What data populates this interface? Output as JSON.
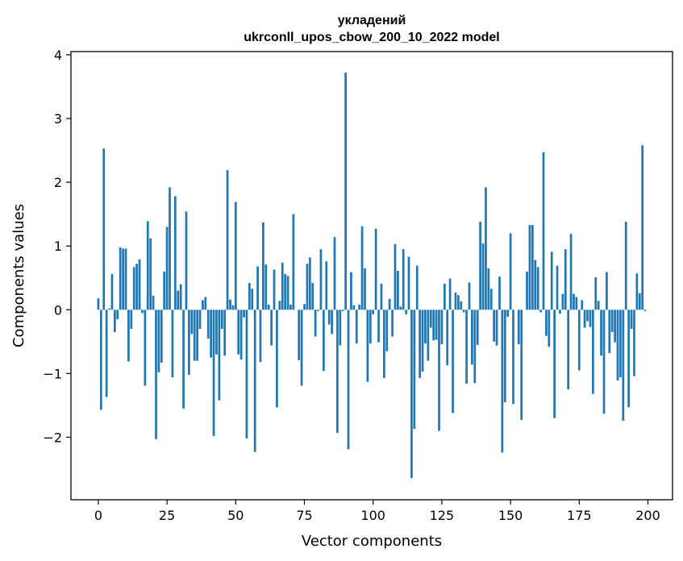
{
  "chart_data": {
    "type": "bar",
    "title": [
      "укладений",
      "ukrconll_upos_cbow_200_10_2022 model"
    ],
    "xlabel": "Vector components",
    "ylabel": "Components values",
    "xlim": [
      -9.95,
      208.95
    ],
    "ylim": [
      -2.98,
      4.05
    ],
    "xticks": [
      0,
      25,
      50,
      75,
      100,
      125,
      150,
      175,
      200
    ],
    "xtick_labels": [
      "0",
      "25",
      "50",
      "75",
      "100",
      "125",
      "150",
      "175",
      "200"
    ],
    "yticks": [
      -2,
      -1,
      0,
      1,
      2,
      3,
      4
    ],
    "ytick_labels": [
      "−2",
      "−1",
      "0",
      "1",
      "2",
      "3",
      "4"
    ],
    "grid": false,
    "bar_color": "#1f77b4",
    "x": [
      0,
      1,
      2,
      3,
      4,
      5,
      6,
      7,
      8,
      9,
      10,
      11,
      12,
      13,
      14,
      15,
      16,
      17,
      18,
      19,
      20,
      21,
      22,
      23,
      24,
      25,
      26,
      27,
      28,
      29,
      30,
      31,
      32,
      33,
      34,
      35,
      36,
      37,
      38,
      39,
      40,
      41,
      42,
      43,
      44,
      45,
      46,
      47,
      48,
      49,
      50,
      51,
      52,
      53,
      54,
      55,
      56,
      57,
      58,
      59,
      60,
      61,
      62,
      63,
      64,
      65,
      66,
      67,
      68,
      69,
      70,
      71,
      72,
      73,
      74,
      75,
      76,
      77,
      78,
      79,
      80,
      81,
      82,
      83,
      84,
      85,
      86,
      87,
      88,
      89,
      90,
      91,
      92,
      93,
      94,
      95,
      96,
      97,
      98,
      99,
      100,
      101,
      102,
      103,
      104,
      105,
      106,
      107,
      108,
      109,
      110,
      111,
      112,
      113,
      114,
      115,
      116,
      117,
      118,
      119,
      120,
      121,
      122,
      123,
      124,
      125,
      126,
      127,
      128,
      129,
      130,
      131,
      132,
      133,
      134,
      135,
      136,
      137,
      138,
      139,
      140,
      141,
      142,
      143,
      144,
      145,
      146,
      147,
      148,
      149,
      150,
      151,
      152,
      153,
      154,
      155,
      156,
      157,
      158,
      159,
      160,
      161,
      162,
      163,
      164,
      165,
      166,
      167,
      168,
      169,
      170,
      171,
      172,
      173,
      174,
      175,
      176,
      177,
      178,
      179,
      180,
      181,
      182,
      183,
      184,
      185,
      186,
      187,
      188,
      189,
      190,
      191,
      192,
      193,
      194,
      195,
      196,
      197,
      198,
      199
    ],
    "values": [
      0.18,
      -1.57,
      2.53,
      -1.37,
      0.02,
      0.56,
      -0.35,
      -0.15,
      0.98,
      0.96,
      0.96,
      -0.81,
      -0.3,
      0.67,
      0.72,
      0.79,
      -0.05,
      -1.19,
      1.39,
      1.12,
      0.22,
      -2.03,
      -0.98,
      -0.83,
      0.6,
      1.3,
      1.92,
      -1.06,
      1.78,
      0.3,
      0.4,
      -1.55,
      1.54,
      -1.02,
      -0.38,
      -0.8,
      -0.8,
      -0.3,
      0.15,
      0.2,
      -0.45,
      -0.75,
      -1.98,
      -0.7,
      -1.42,
      -0.3,
      -0.72,
      2.19,
      0.16,
      0.07,
      1.69,
      -0.7,
      -0.78,
      -0.12,
      -2.02,
      0.42,
      0.33,
      -2.23,
      0.68,
      -0.82,
      1.37,
      0.71,
      0.08,
      -0.56,
      0.63,
      -1.53,
      0.14,
      0.74,
      0.56,
      0.53,
      0.08,
      1.5,
      0.0,
      -0.79,
      -1.19,
      0.09,
      0.72,
      0.82,
      0.42,
      -0.42,
      -0.02,
      0.95,
      -0.96,
      0.76,
      -0.23,
      -0.38,
      1.14,
      -1.93,
      -0.56,
      -0.02,
      3.72,
      -2.19,
      0.59,
      0.07,
      -0.53,
      0.08,
      1.31,
      0.65,
      -1.13,
      -0.53,
      -0.07,
      1.27,
      -0.51,
      0.41,
      -1.07,
      -0.65,
      0.17,
      -0.42,
      1.03,
      0.61,
      0.05,
      0.95,
      -0.07,
      0.83,
      -2.64,
      -1.87,
      0.69,
      -1.07,
      -0.97,
      -0.53,
      -0.8,
      -0.28,
      -0.48,
      -0.47,
      -1.9,
      -0.54,
      0.41,
      -0.87,
      0.49,
      -1.62,
      0.27,
      0.23,
      0.13,
      -0.04,
      -1.16,
      0.43,
      -0.86,
      -1.15,
      -0.55,
      1.38,
      1.04,
      1.92,
      0.65,
      0.33,
      -0.5,
      -0.56,
      0.52,
      -2.24,
      -1.45,
      -0.11,
      1.2,
      -1.48,
      0.0,
      -0.54,
      -1.73,
      0.0,
      0.6,
      1.33,
      1.33,
      0.78,
      0.67,
      -0.04,
      2.47,
      -0.41,
      -0.58,
      0.91,
      -1.7,
      0.69,
      -0.06,
      0.25,
      0.95,
      -1.25,
      1.19,
      0.25,
      0.2,
      -0.95,
      0.15,
      -0.28,
      -0.18,
      -0.27,
      -1.32,
      0.51,
      0.14,
      -0.72,
      -1.63,
      0.59,
      -0.68,
      -0.35,
      -0.51,
      -1.11,
      -1.06,
      -1.74,
      1.38,
      -1.53,
      -0.3,
      -1.04,
      0.57,
      0.26,
      2.58,
      -0.02
    ]
  }
}
